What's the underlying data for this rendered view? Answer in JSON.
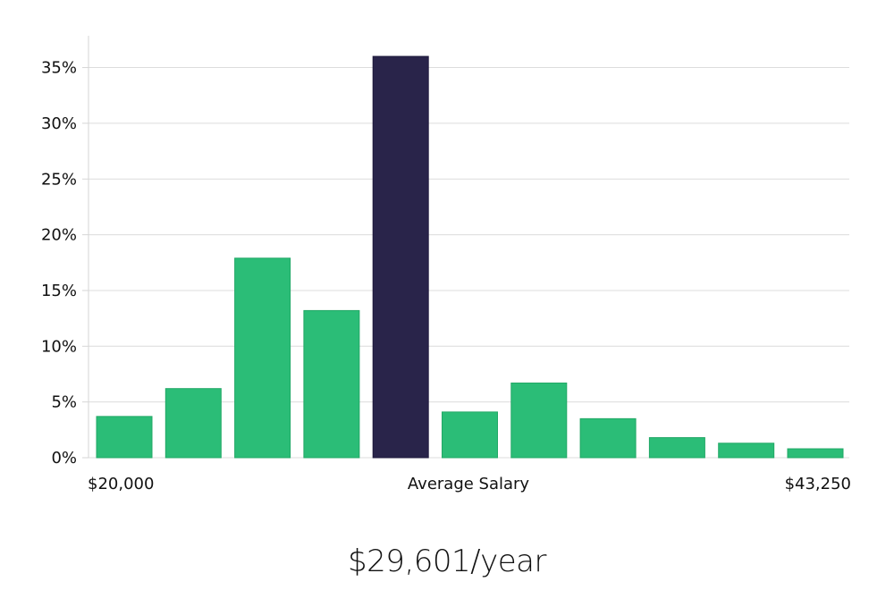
{
  "chart_data": {
    "type": "bar",
    "categories": [
      "",
      "",
      "",
      "",
      "",
      "",
      "",
      "",
      "",
      "",
      ""
    ],
    "values": [
      3.7,
      6.2,
      17.9,
      13.2,
      36.0,
      4.1,
      6.7,
      3.5,
      1.8,
      1.3,
      0.8
    ],
    "highlight_index": 4,
    "ylim": [
      0,
      37
    ],
    "yticks": [
      0,
      5,
      10,
      15,
      20,
      25,
      30,
      35
    ],
    "ytick_labels": [
      "0%",
      "5%",
      "10%",
      "15%",
      "20%",
      "25%",
      "30%",
      "35%"
    ],
    "x_labels": {
      "left": "$20,000",
      "center": "Average Salary",
      "right": "$43,250"
    },
    "grid": true,
    "colors": {
      "bar": "#2bbd77",
      "highlight": "#29244a",
      "grid": "#dcdcdc"
    }
  },
  "summary": {
    "average_salary": "$29,601/year"
  }
}
